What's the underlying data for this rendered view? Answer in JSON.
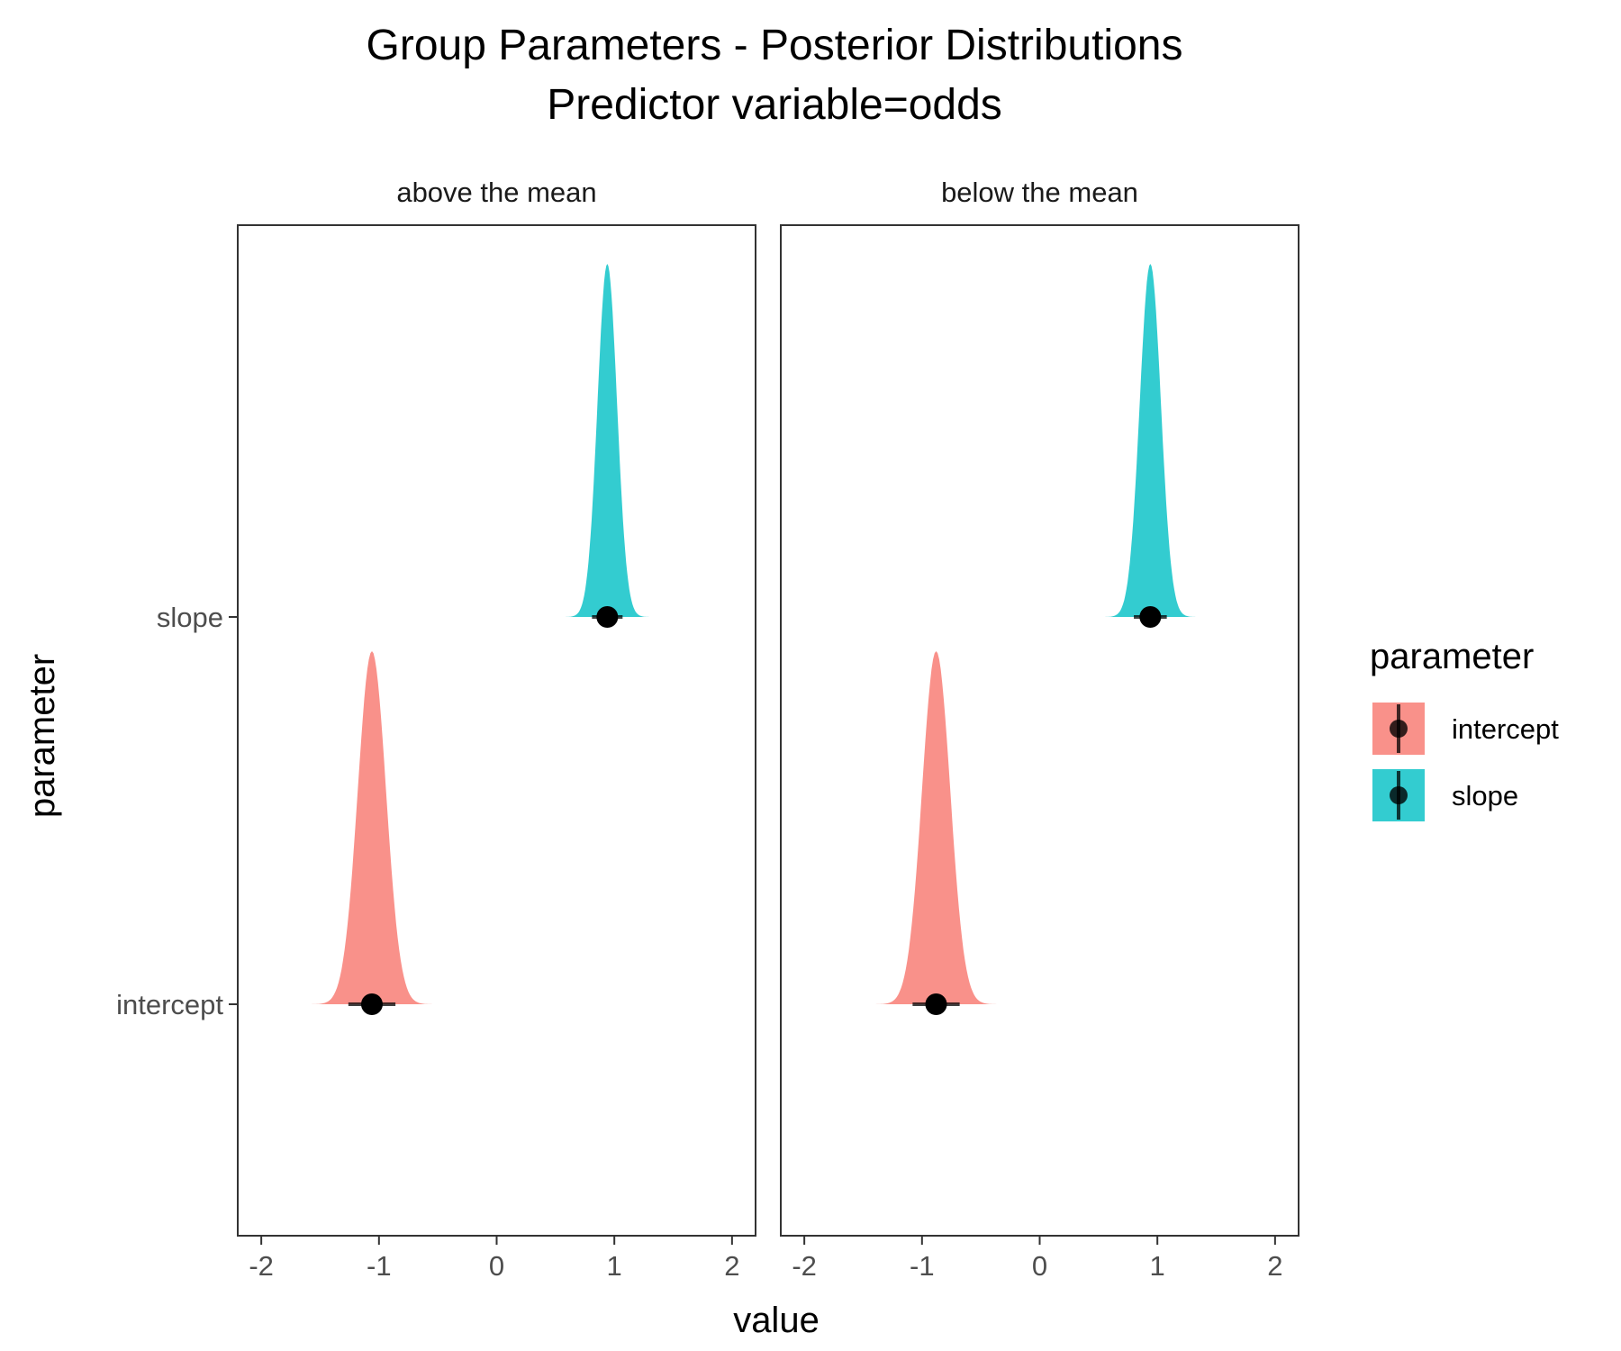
{
  "chart_data": {
    "type": "density_ridge",
    "title": "Group Parameters - Posterior Distributions",
    "subtitle": "Predictor variable=odds",
    "xlabel": "value",
    "ylabel": "parameter",
    "xlim": [
      -2.2,
      2.2
    ],
    "x_ticks": [
      -2,
      -1,
      0,
      1,
      2
    ],
    "categories": [
      "intercept",
      "slope"
    ],
    "grid": false,
    "legend": {
      "title": "parameter",
      "position": "right",
      "entries": [
        {
          "name": "intercept",
          "color": "#F8766D"
        },
        {
          "name": "slope",
          "color": "#00BFC4"
        }
      ]
    },
    "facets": [
      {
        "label": "above the mean",
        "series": [
          {
            "name": "intercept",
            "center": -1.06,
            "spread": 0.12,
            "interval": [
              -1.26,
              -0.86
            ]
          },
          {
            "name": "slope",
            "center": 0.94,
            "spread": 0.083,
            "interval": [
              0.81,
              1.07
            ]
          }
        ]
      },
      {
        "label": "below the mean",
        "series": [
          {
            "name": "intercept",
            "center": -0.88,
            "spread": 0.12,
            "interval": [
              -1.08,
              -0.68
            ]
          },
          {
            "name": "slope",
            "center": 0.94,
            "spread": 0.09,
            "interval": [
              0.8,
              1.08
            ]
          }
        ]
      }
    ]
  }
}
